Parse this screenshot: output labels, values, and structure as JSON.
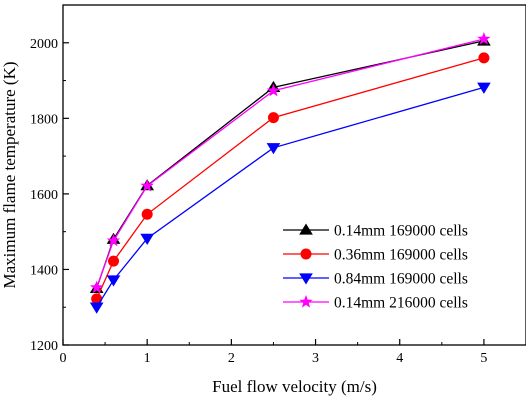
{
  "chart_data": {
    "type": "line",
    "title": "",
    "xlabel": "Fuel flow velocity (m/s)",
    "ylabel": "Maximum flame temperature (K)",
    "xlim": [
      0,
      5.5
    ],
    "ylim": [
      1200,
      2100
    ],
    "xticks": [
      0,
      1,
      2,
      3,
      4,
      5
    ],
    "yticks": [
      1200,
      1400,
      1600,
      1800,
      2000
    ],
    "grid": false,
    "legend_position": "lower-right",
    "x": [
      0.4,
      0.6,
      1.0,
      2.5,
      5.0
    ],
    "series": [
      {
        "name": "0.14mm 169000 cells",
        "marker": "triangle-up",
        "color": "#000000",
        "values": [
          1350,
          1480,
          1622,
          1882,
          2005
        ]
      },
      {
        "name": "0.36mm 169000 cells",
        "marker": "circle",
        "color": "#ff0000",
        "values": [
          1322,
          1422,
          1546,
          1802,
          1960
        ]
      },
      {
        "name": "0.84mm 169000 cells",
        "marker": "triangle-down",
        "color": "#0000ff",
        "values": [
          1300,
          1372,
          1482,
          1722,
          1882
        ]
      },
      {
        "name": "0.14mm 216000 cells",
        "marker": "star",
        "color": "#ff00ff",
        "values": [
          1352,
          1476,
          1621,
          1873,
          2010
        ]
      }
    ]
  }
}
